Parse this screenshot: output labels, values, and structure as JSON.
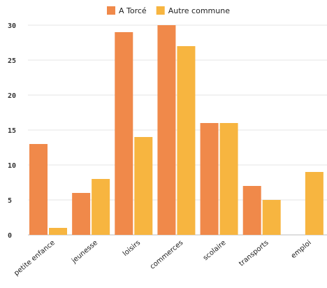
{
  "chart_data": {
    "type": "bar",
    "categories": [
      "petite enfance",
      "jeunesse",
      "loisirs",
      "commerces",
      "scolaire",
      "transports",
      "emploi"
    ],
    "series": [
      {
        "name": "A Torcé",
        "values": [
          13,
          6,
          29,
          30,
          16,
          7,
          0
        ],
        "color": "#F0894A"
      },
      {
        "name": "Autre commune",
        "values": [
          1,
          8,
          14,
          27,
          16,
          5,
          9
        ],
        "color": "#F7B540"
      }
    ],
    "ylim": [
      0,
      30
    ],
    "yticks": [
      0,
      5,
      10,
      15,
      20,
      25,
      30
    ],
    "grid": true,
    "legend_position": "top-center"
  }
}
